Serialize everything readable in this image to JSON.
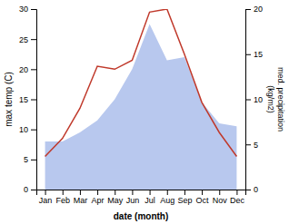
{
  "chart_data": {
    "type": "line",
    "x_label": "date (month)",
    "y_label": "max temp (C)",
    "y2_label": "med. precipitation\n(kg/m2)",
    "categories": [
      "Jan",
      "Feb",
      "Mar",
      "Apr",
      "May",
      "Jun",
      "Jul",
      "Aug",
      "Sep",
      "Oct",
      "Nov",
      "Dec"
    ],
    "series": [
      {
        "type": "area",
        "color": "#b8c8ee",
        "values": [
          8.0,
          8.0,
          9.5,
          11.5,
          15.0,
          20.0,
          27.5,
          21.5,
          22.0,
          14.5,
          11.0,
          10.5
        ]
      },
      {
        "type": "line",
        "color": "#c0392b",
        "values": [
          5.5,
          8.5,
          13.5,
          20.5,
          20.0,
          21.5,
          29.5,
          30.0,
          22.5,
          14.5,
          9.5,
          5.5
        ]
      }
    ],
    "ylim": [
      0,
      30
    ],
    "yticks": [
      0,
      5,
      10,
      15,
      20,
      25,
      30
    ],
    "y2lim": [
      0,
      20
    ],
    "y2ticks": [
      0,
      5,
      10,
      15,
      20
    ]
  }
}
